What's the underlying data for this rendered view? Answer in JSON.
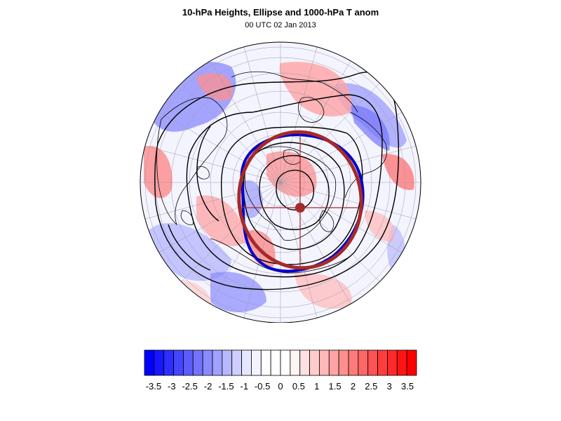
{
  "figure": {
    "title": "10-hPa Heights, Ellipse and 1000-hPa T anom",
    "subtitle": "00 UTC 02 Jan 2013"
  },
  "colorbar": {
    "tick_labels": [
      "-3.5",
      "-3",
      "-2.5",
      "-2",
      "-1.5",
      "-1",
      "-0.5",
      "0",
      "0.5",
      "1",
      "1.5",
      "2",
      "2.5",
      "3",
      "3.5"
    ],
    "range": [
      -3.75,
      3.75
    ],
    "interval": 0.25,
    "colors": [
      "#0000ff",
      "#1717ff",
      "#2e2eff",
      "#4545ff",
      "#5c5cff",
      "#7373ff",
      "#8a8aff",
      "#a1a1ff",
      "#b8b8ff",
      "#cfcfff",
      "#e6e6ff",
      "#f4f4ff",
      "#ffffff",
      "#ffffff",
      "#ffffff",
      "#fff4f4",
      "#ffe0e0",
      "#ffcccc",
      "#ffb8b8",
      "#ffa3a3",
      "#ff8f8f",
      "#ff7a7a",
      "#ff6666",
      "#ff5252",
      "#ff3d3d",
      "#ff2929",
      "#ff1414",
      "#ff0000"
    ]
  },
  "map": {
    "projection": "orthographic",
    "center": "North Pole",
    "anomaly_palette": "blue-white-red",
    "observed_vortex_color": "#0000cc",
    "fitted_ellipse_color": "#a52a2a",
    "height_contour_color": "#000000"
  }
}
